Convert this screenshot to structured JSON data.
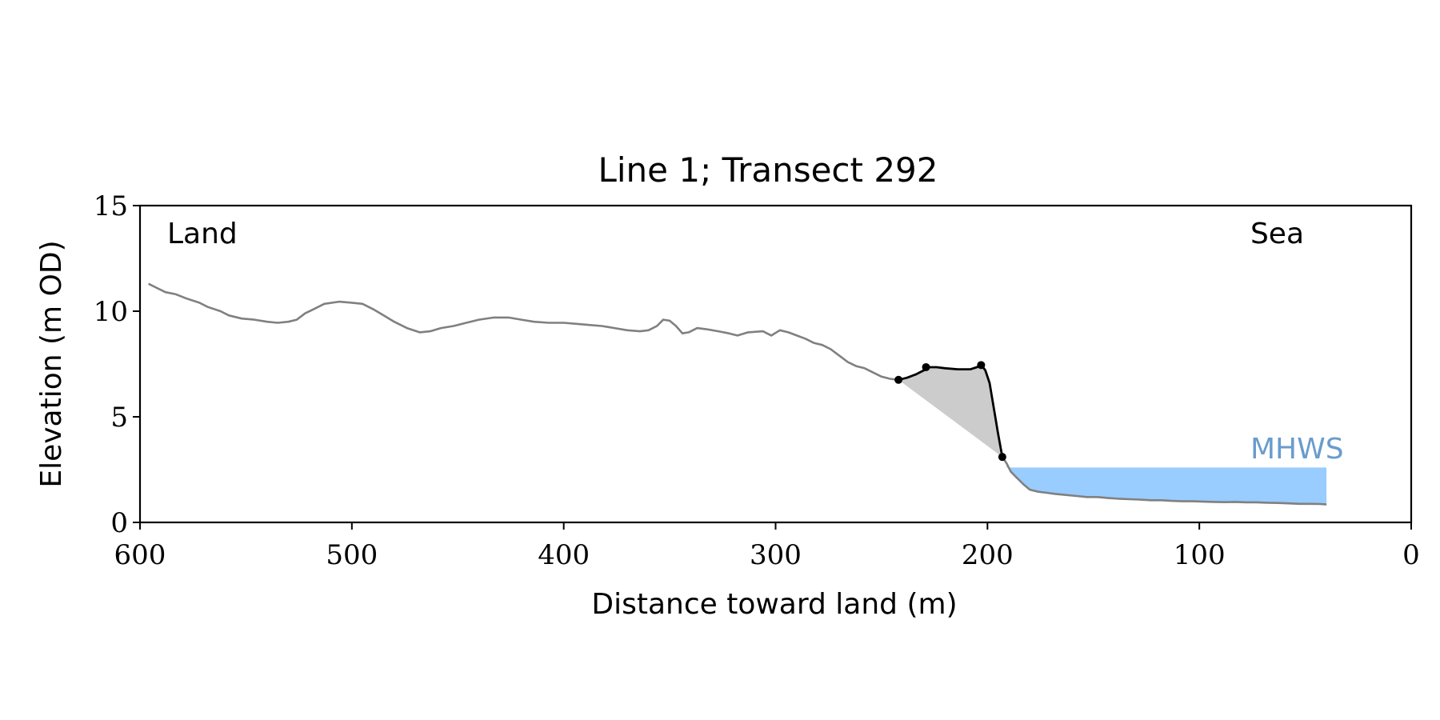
{
  "chart_data": {
    "type": "line",
    "title": "Line 1; Transect 292",
    "xlabel": "Distance toward land (m)",
    "ylabel": "Elevation (m OD)",
    "xlim": [
      600,
      0
    ],
    "ylim": [
      0,
      15
    ],
    "x_ticks": [
      600,
      500,
      400,
      300,
      200,
      100,
      0
    ],
    "y_ticks": [
      0,
      5,
      10,
      15
    ],
    "grid": false,
    "annotations": {
      "land": "Land",
      "sea": "Sea",
      "mhws": "MHWS"
    },
    "colors": {
      "profile": "#808080",
      "dune": "#000000",
      "shade": "#cccccc",
      "water": "#99ccff",
      "mhws_label": "#6a9ccc"
    },
    "series": [
      {
        "role": "profile",
        "points": [
          [
            596,
            11.3
          ],
          [
            592,
            11.1
          ],
          [
            588,
            10.9
          ],
          [
            583,
            10.8
          ],
          [
            578,
            10.6
          ],
          [
            572,
            10.4
          ],
          [
            568,
            10.2
          ],
          [
            562,
            10.0
          ],
          [
            558,
            9.8
          ],
          [
            552,
            9.65
          ],
          [
            546,
            9.6
          ],
          [
            540,
            9.5
          ],
          [
            535,
            9.45
          ],
          [
            530,
            9.5
          ],
          [
            526,
            9.6
          ],
          [
            522,
            9.9
          ],
          [
            518,
            10.1
          ],
          [
            513,
            10.35
          ],
          [
            506,
            10.45
          ],
          [
            500,
            10.4
          ],
          [
            495,
            10.35
          ],
          [
            490,
            10.1
          ],
          [
            485,
            9.8
          ],
          [
            480,
            9.5
          ],
          [
            474,
            9.2
          ],
          [
            468,
            9.0
          ],
          [
            463,
            9.05
          ],
          [
            458,
            9.2
          ],
          [
            452,
            9.3
          ],
          [
            446,
            9.45
          ],
          [
            440,
            9.6
          ],
          [
            433,
            9.7
          ],
          [
            426,
            9.7
          ],
          [
            420,
            9.6
          ],
          [
            414,
            9.5
          ],
          [
            407,
            9.45
          ],
          [
            400,
            9.45
          ],
          [
            394,
            9.4
          ],
          [
            388,
            9.35
          ],
          [
            382,
            9.3
          ],
          [
            376,
            9.2
          ],
          [
            370,
            9.1
          ],
          [
            364,
            9.05
          ],
          [
            360,
            9.1
          ],
          [
            356,
            9.3
          ],
          [
            353,
            9.6
          ],
          [
            350,
            9.55
          ],
          [
            347,
            9.3
          ],
          [
            344,
            8.95
          ],
          [
            341,
            9.0
          ],
          [
            337,
            9.2
          ],
          [
            333,
            9.15
          ],
          [
            327,
            9.05
          ],
          [
            322,
            8.95
          ],
          [
            318,
            8.85
          ],
          [
            313,
            9.0
          ],
          [
            306,
            9.05
          ],
          [
            302,
            8.85
          ],
          [
            298,
            9.1
          ],
          [
            294,
            9.0
          ],
          [
            290,
            8.85
          ],
          [
            286,
            8.7
          ],
          [
            282,
            8.5
          ],
          [
            278,
            8.4
          ],
          [
            274,
            8.2
          ],
          [
            270,
            7.9
          ],
          [
            266,
            7.6
          ],
          [
            262,
            7.4
          ],
          [
            258,
            7.3
          ],
          [
            254,
            7.1
          ],
          [
            250,
            6.9
          ],
          [
            246,
            6.8
          ],
          [
            242,
            6.75
          ],
          [
            193,
            3.1
          ],
          [
            191,
            2.8
          ],
          [
            189,
            2.4
          ],
          [
            186,
            2.1
          ],
          [
            183,
            1.8
          ],
          [
            180,
            1.55
          ],
          [
            176,
            1.45
          ],
          [
            172,
            1.4
          ],
          [
            168,
            1.35
          ],
          [
            163,
            1.3
          ],
          [
            158,
            1.25
          ],
          [
            153,
            1.2
          ],
          [
            148,
            1.2
          ],
          [
            143,
            1.15
          ],
          [
            138,
            1.12
          ],
          [
            133,
            1.1
          ],
          [
            128,
            1.08
          ],
          [
            123,
            1.05
          ],
          [
            118,
            1.05
          ],
          [
            113,
            1.02
          ],
          [
            108,
            1.0
          ],
          [
            103,
            1.0
          ],
          [
            98,
            0.98
          ],
          [
            93,
            0.97
          ],
          [
            88,
            0.96
          ],
          [
            83,
            0.97
          ],
          [
            78,
            0.95
          ],
          [
            73,
            0.95
          ],
          [
            68,
            0.93
          ],
          [
            63,
            0.92
          ],
          [
            58,
            0.9
          ],
          [
            53,
            0.88
          ],
          [
            48,
            0.88
          ],
          [
            43,
            0.87
          ],
          [
            40,
            0.85
          ]
        ]
      },
      {
        "role": "dune",
        "points": [
          [
            242,
            6.75
          ],
          [
            238,
            6.85
          ],
          [
            234,
            7.0
          ],
          [
            230,
            7.2
          ],
          [
            228,
            7.35
          ],
          [
            224,
            7.35
          ],
          [
            220,
            7.3
          ],
          [
            214,
            7.25
          ],
          [
            208,
            7.25
          ],
          [
            205,
            7.35
          ],
          [
            203,
            7.45
          ],
          [
            201,
            7.2
          ],
          [
            199,
            6.6
          ],
          [
            197,
            5.4
          ],
          [
            195,
            4.2
          ],
          [
            193,
            3.1
          ]
        ],
        "markers": [
          [
            242,
            6.75
          ],
          [
            229,
            7.35
          ],
          [
            203,
            7.45
          ],
          [
            193,
            3.1
          ]
        ]
      }
    ],
    "mhws_level": 2.6,
    "water_extent": [
      191,
      40
    ]
  }
}
